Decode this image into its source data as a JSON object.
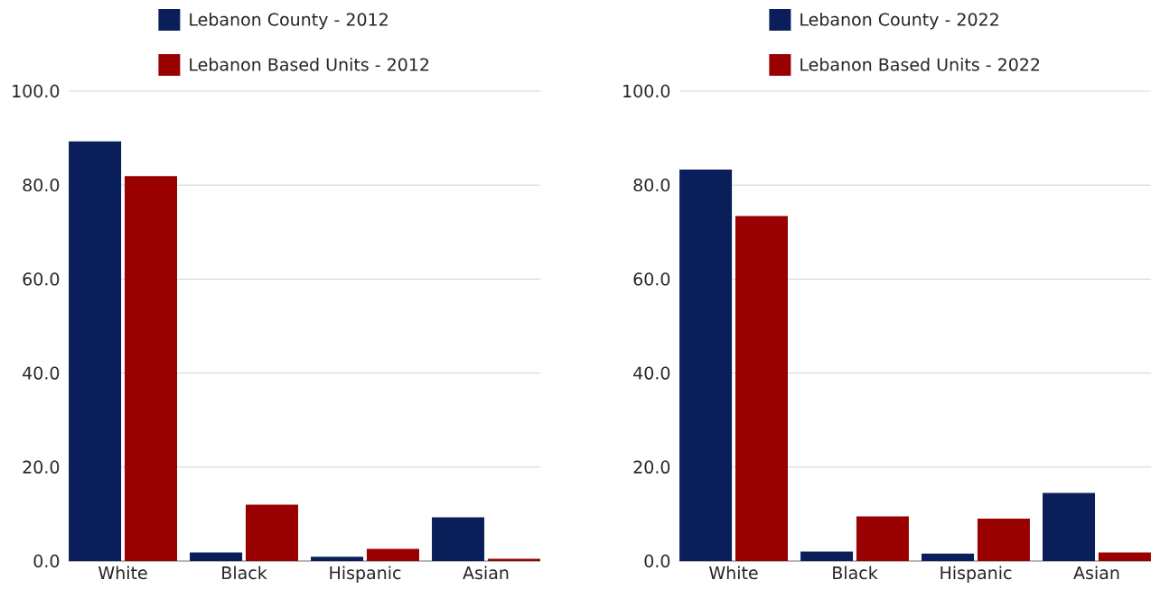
{
  "chart_data": [
    {
      "type": "bar",
      "categories": [
        "White",
        "Black",
        "Hispanic",
        "Asian"
      ],
      "series": [
        {
          "name": "Lebanon County - 2012",
          "color": "#0a1f5a",
          "values": [
            89.3,
            1.8,
            0.9,
            9.3
          ]
        },
        {
          "name": "Lebanon Based Units - 2012",
          "color": "#990000",
          "values": [
            81.9,
            12.0,
            2.6,
            0.5
          ]
        }
      ],
      "ylim": [
        0,
        100
      ],
      "yticks": [
        {
          "value": 0,
          "label": "0.0"
        },
        {
          "value": 20,
          "label": "20.0"
        },
        {
          "value": 40,
          "label": "40.0"
        },
        {
          "value": 60,
          "label": "60.0"
        },
        {
          "value": 80,
          "label": "80.0"
        },
        {
          "value": 100,
          "label": "100.0"
        }
      ],
      "grid": "y",
      "legend": "top"
    },
    {
      "type": "bar",
      "categories": [
        "White",
        "Black",
        "Hispanic",
        "Asian"
      ],
      "series": [
        {
          "name": "Lebanon County - 2022",
          "color": "#0a1f5a",
          "values": [
            83.3,
            2.0,
            1.6,
            14.5
          ]
        },
        {
          "name": "Lebanon Based Units - 2022",
          "color": "#990000",
          "values": [
            73.4,
            9.5,
            9.0,
            1.8
          ]
        }
      ],
      "ylim": [
        0,
        100
      ],
      "yticks": [
        {
          "value": 0,
          "label": "0.0"
        },
        {
          "value": 20,
          "label": "20.0"
        },
        {
          "value": 40,
          "label": "40.0"
        },
        {
          "value": 60,
          "label": "60.0"
        },
        {
          "value": 80,
          "label": "80.0"
        },
        {
          "value": 100,
          "label": "100.0"
        }
      ],
      "grid": "y",
      "legend": "top"
    }
  ]
}
